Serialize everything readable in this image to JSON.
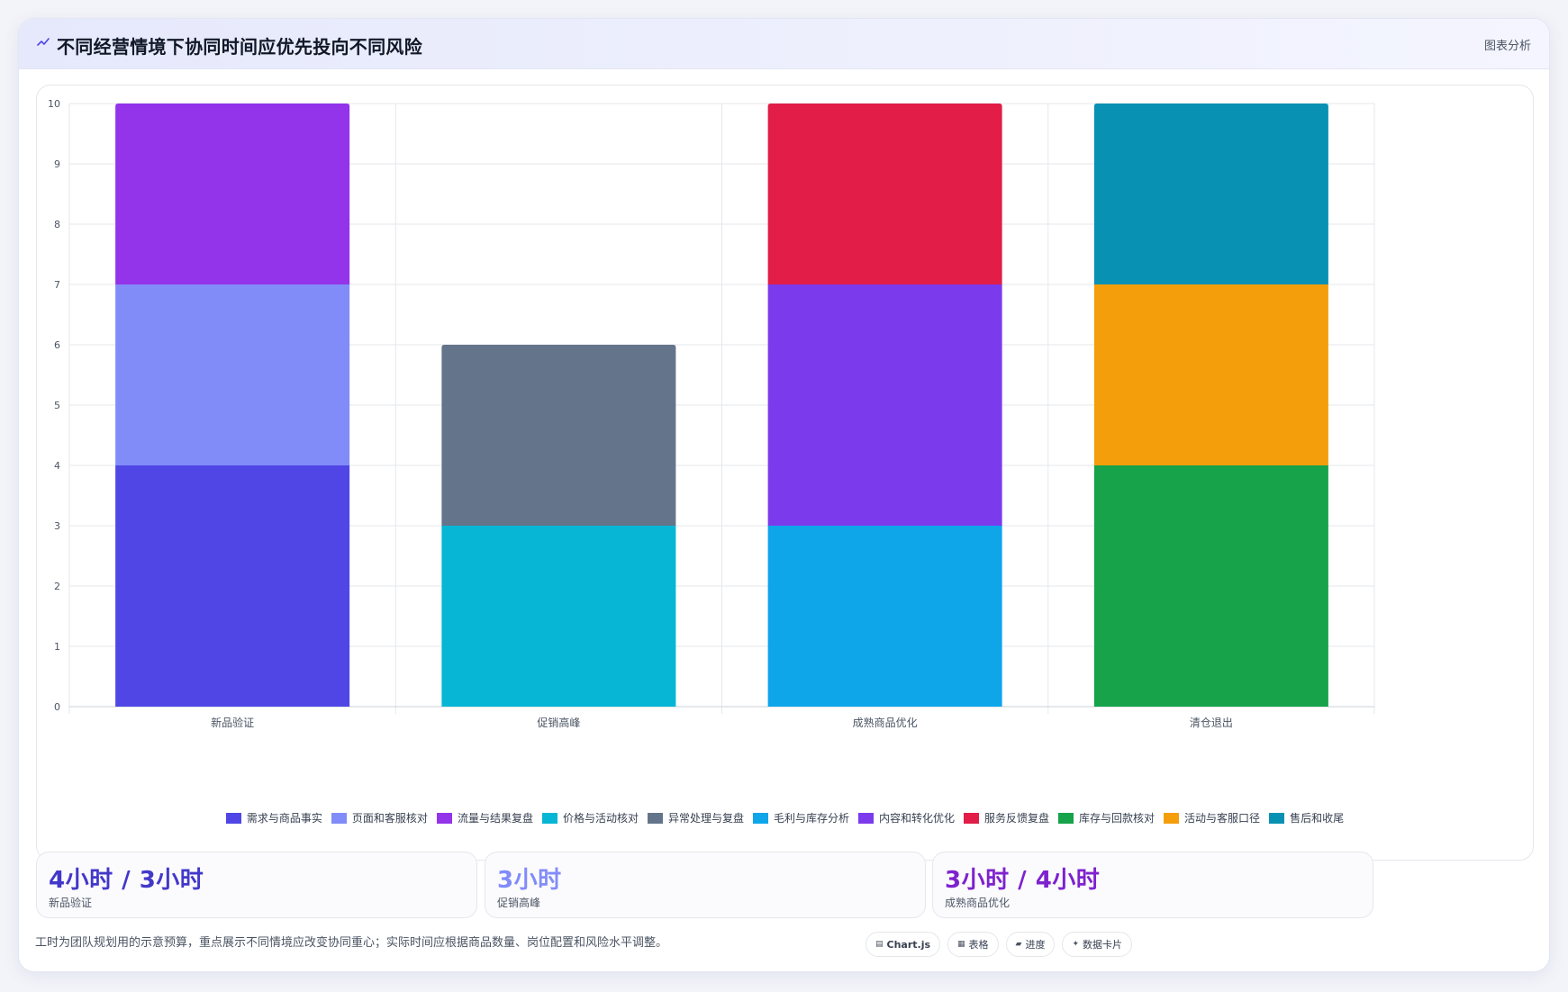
{
  "header": {
    "icon": "chart-line-icon",
    "title": "不同经营情境下协同时间应优先投向不同风险",
    "tag": "图表分析"
  },
  "chart_data": {
    "type": "bar",
    "stacked": true,
    "title": "",
    "xlabel": "",
    "ylabel": "",
    "ylim": [
      0,
      10
    ],
    "yticks": [
      0,
      1,
      2,
      3,
      4,
      5,
      6,
      7,
      8,
      9,
      10
    ],
    "grid": true,
    "legend_position": "bottom",
    "categories": [
      "新品验证",
      "促销高峰",
      "成熟商品优化",
      "清仓退出"
    ],
    "series": [
      {
        "name": "需求与商品事实",
        "color": "#4f46e5",
        "values": [
          4,
          0,
          0,
          0
        ]
      },
      {
        "name": "页面和客服核对",
        "color": "#818cf8",
        "values": [
          3,
          0,
          0,
          0
        ]
      },
      {
        "name": "流量与结果复盘",
        "color": "#9333ea",
        "values": [
          3,
          0,
          0,
          0
        ]
      },
      {
        "name": "价格与活动核对",
        "color": "#06b6d4",
        "values": [
          0,
          3,
          0,
          0
        ]
      },
      {
        "name": "异常处理与复盘",
        "color": "#64748b",
        "values": [
          0,
          3,
          0,
          0
        ]
      },
      {
        "name": "毛利与库存分析",
        "color": "#0ea5e9",
        "values": [
          0,
          0,
          3,
          0
        ]
      },
      {
        "name": "内容和转化优化",
        "color": "#7c3aed",
        "values": [
          0,
          0,
          4,
          0
        ]
      },
      {
        "name": "服务反馈复盘",
        "color": "#e11d48",
        "values": [
          0,
          0,
          3,
          0
        ]
      },
      {
        "name": "库存与回款核对",
        "color": "#16a34a",
        "values": [
          0,
          0,
          0,
          4
        ]
      },
      {
        "name": "活动与客服口径",
        "color": "#f59e0b",
        "values": [
          0,
          0,
          0,
          3
        ]
      },
      {
        "name": "售后和收尾",
        "color": "#0891b2",
        "values": [
          0,
          0,
          0,
          3
        ]
      }
    ]
  },
  "stats": [
    {
      "value": "4小时 / 3小时",
      "label": "新品验证",
      "color": "#4338ca"
    },
    {
      "value": "3小时",
      "label": "促销高峰",
      "color": "#818cf8"
    },
    {
      "value": "3小时 / 4小时",
      "label": "成熟商品优化",
      "color": "#7e22ce"
    }
  ],
  "footnote": "工时为团队规划用的示意预算，重点展示不同情境应改变协同重心；实际时间应根据商品数量、岗位配置和风险水平调整。",
  "chips": [
    {
      "label": "Chart.js",
      "icon": "chart-icon",
      "glyph": "▤",
      "bold": true
    },
    {
      "label": "表格",
      "icon": "table-icon",
      "glyph": "▦",
      "bold": false
    },
    {
      "label": "进度",
      "icon": "progress-icon",
      "glyph": "▰",
      "bold": false
    },
    {
      "label": "数据卡片",
      "icon": "card-icon",
      "glyph": "✦",
      "bold": false
    }
  ]
}
